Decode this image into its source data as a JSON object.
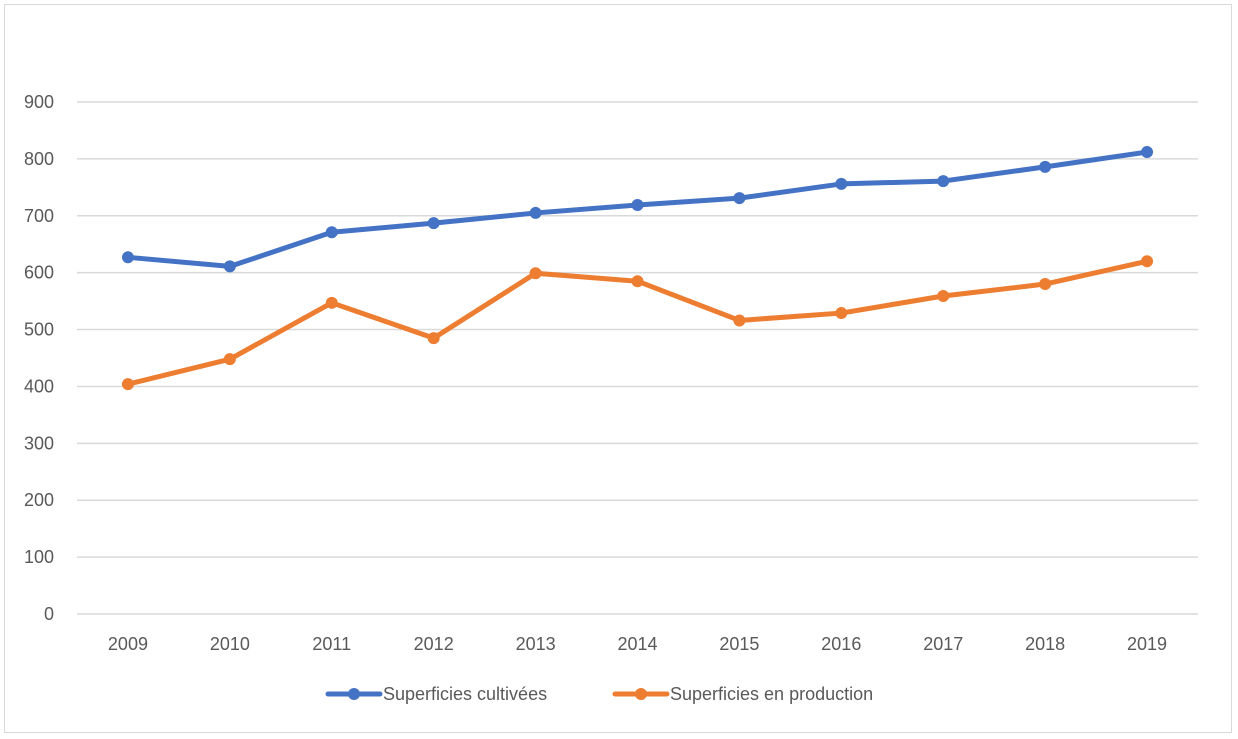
{
  "chart_data": {
    "type": "line",
    "title": "",
    "xlabel": "",
    "ylabel": "",
    "categories": [
      "2009",
      "2010",
      "2011",
      "2012",
      "2013",
      "2014",
      "2015",
      "2016",
      "2017",
      "2018",
      "2019"
    ],
    "ylim": [
      0,
      900
    ],
    "yticks": [
      0,
      100,
      200,
      300,
      400,
      500,
      600,
      700,
      800,
      900
    ],
    "ytick_labels": [
      "0",
      "100",
      "200",
      "300",
      "400",
      "500",
      "600",
      "700",
      "800",
      "900"
    ],
    "grid": true,
    "legend_position": "bottom",
    "series": [
      {
        "name": "Superficies cultivées",
        "color": "#4472c4",
        "values": [
          627,
          611,
          671,
          687,
          705,
          719,
          731,
          756,
          761,
          786,
          812
        ]
      },
      {
        "name": "Superficies en production",
        "color": "#ed7d31",
        "values": [
          404,
          448,
          547,
          485,
          599,
          585,
          516,
          529,
          559,
          580,
          620
        ]
      }
    ]
  }
}
